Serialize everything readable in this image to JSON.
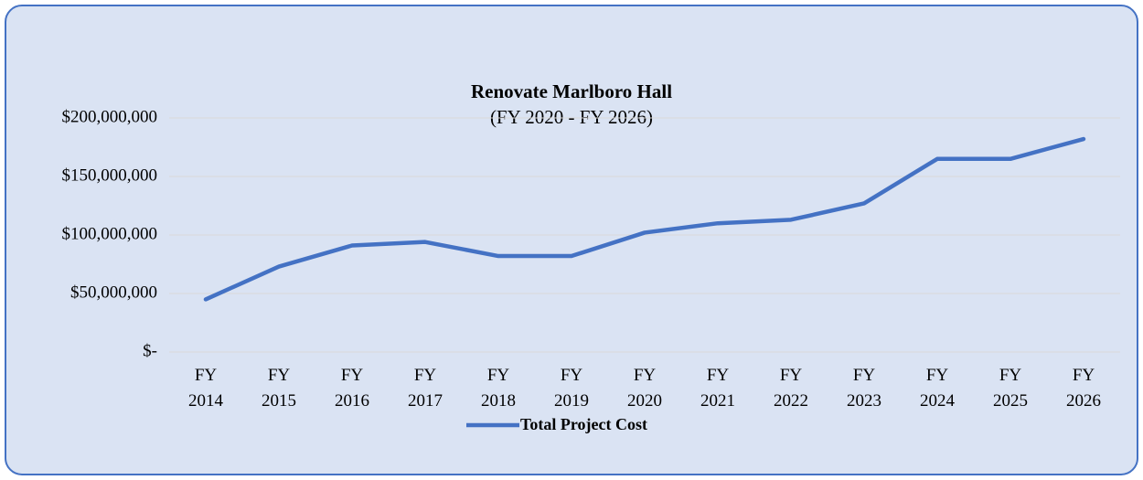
{
  "chart_data": {
    "type": "line",
    "title": "Renovate Marlboro Hall",
    "subtitle": "(FY 2020 - FY 2026)",
    "categories": [
      "FY 2014",
      "FY 2015",
      "FY 2016",
      "FY 2017",
      "FY 2018",
      "FY 2019",
      "FY 2020",
      "FY 2021",
      "FY 2022",
      "FY 2023",
      "FY 2024",
      "FY 2025",
      "FY 2026"
    ],
    "series": [
      {
        "name": "Total Project Cost",
        "color": "#4472c4",
        "values": [
          45000000,
          73000000,
          91000000,
          94000000,
          82000000,
          82000000,
          102000000,
          110000000,
          113000000,
          127000000,
          165000000,
          165000000,
          182000000
        ]
      }
    ],
    "ylim": [
      0,
      200000000
    ],
    "yticks": [
      {
        "value": 0,
        "label": "$-"
      },
      {
        "value": 50000000,
        "label": "$50,000,000"
      },
      {
        "value": 100000000,
        "label": "$100,000,000"
      },
      {
        "value": 150000000,
        "label": "$150,000,000"
      },
      {
        "value": 200000000,
        "label": "$200,000,000"
      }
    ],
    "grid": true,
    "legend": "bottom"
  }
}
